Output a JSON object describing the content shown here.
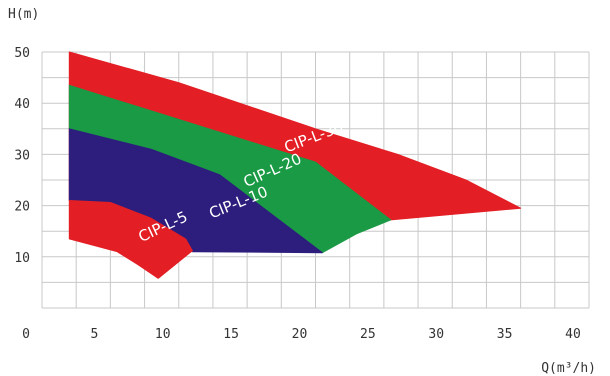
{
  "chart_data": {
    "type": "area",
    "xlabel": "Q(m³/h)",
    "ylabel": "H(m)",
    "xlim": [
      0,
      40
    ],
    "ylim": [
      0,
      50
    ],
    "x_ticks": [
      0,
      5,
      10,
      15,
      20,
      25,
      30,
      35,
      40
    ],
    "y_ticks": [
      10,
      20,
      30,
      40,
      50
    ],
    "x_tick_labels": [
      "0",
      "5",
      "10",
      "15",
      "20",
      "25",
      "30",
      "35",
      "40"
    ],
    "y_tick_labels": [
      "10",
      "20",
      "30",
      "40",
      "50"
    ],
    "grid": true,
    "series": [
      {
        "name": "CIP-L-30",
        "color": "#e31e24",
        "points": [
          [
            2,
            50
          ],
          [
            10,
            44
          ],
          [
            20,
            35
          ],
          [
            26,
            30
          ],
          [
            31,
            25
          ],
          [
            35,
            19.5
          ],
          [
            25.5,
            17.2
          ],
          [
            2,
            21
          ]
        ]
      },
      {
        "name": "CIP-L-20",
        "color": "#1a9a44",
        "points": [
          [
            2,
            43.5
          ],
          [
            20,
            28.5
          ],
          [
            25.5,
            17.2
          ],
          [
            23,
            14.5
          ],
          [
            20.5,
            10.8
          ],
          [
            2,
            35
          ]
        ]
      },
      {
        "name": "CIP-L-10",
        "color": "#2d1e7d",
        "points": [
          [
            2,
            35
          ],
          [
            8,
            31
          ],
          [
            13,
            26
          ],
          [
            20.5,
            10.8
          ],
          [
            11,
            11
          ],
          [
            9.5,
            13
          ],
          [
            8,
            16
          ],
          [
            6,
            18
          ],
          [
            2,
            21
          ]
        ]
      },
      {
        "name": "CIP-L-5",
        "color": "#e31e24",
        "points": [
          [
            2,
            21
          ],
          [
            5,
            20.6
          ],
          [
            8,
            17.5
          ],
          [
            10.5,
            13.5
          ],
          [
            11,
            11.2
          ],
          [
            8.5,
            5.8
          ],
          [
            7,
            8.5
          ],
          [
            5.5,
            11
          ],
          [
            2,
            13.5
          ]
        ]
      }
    ],
    "series_labels": [
      {
        "text": "CIP-L-30",
        "x": 20,
        "y": 32.5,
        "angle": -21
      },
      {
        "text": "CIP-L-20",
        "x": 17,
        "y": 26,
        "angle": -24
      },
      {
        "text": "CIP-L-10",
        "x": 14.5,
        "y": 19.7,
        "angle": -22
      },
      {
        "text": "CIP-L-5",
        "x": 9,
        "y": 15,
        "angle": -25
      }
    ]
  }
}
